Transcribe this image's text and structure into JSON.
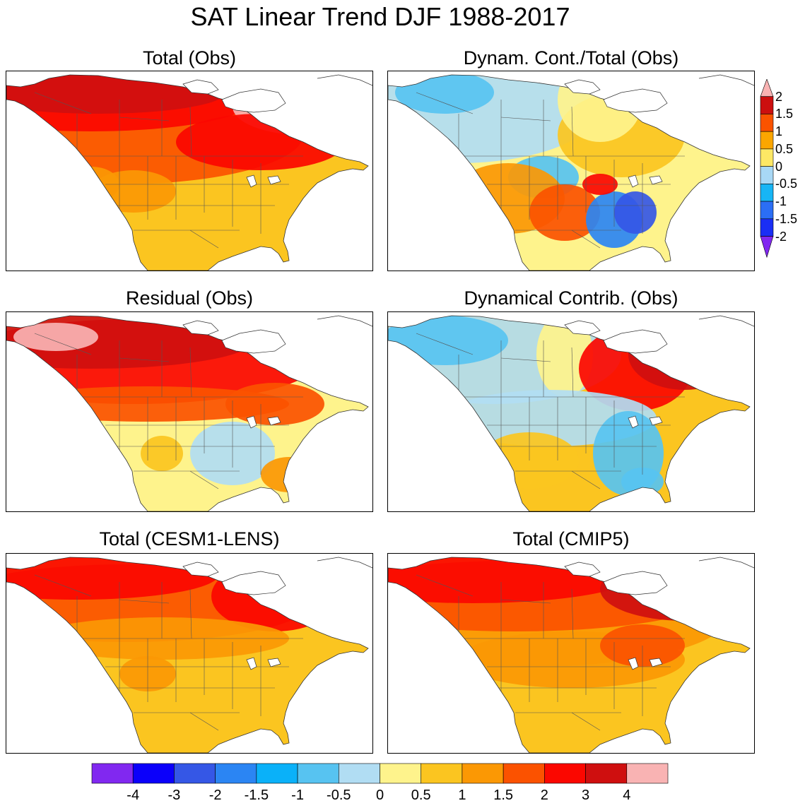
{
  "title": "SAT Linear Trend DJF 1988-2017",
  "panels": [
    {
      "title": "Total (Obs)",
      "scheme": "total_obs"
    },
    {
      "title": "Dynam. Cont./Total (Obs)",
      "scheme": "ratio"
    },
    {
      "title": "Residual (Obs)",
      "scheme": "residual"
    },
    {
      "title": "Dynamical Contrib. (Obs)",
      "scheme": "dynamical"
    },
    {
      "title": "Total (CESM1-LENS)",
      "scheme": "cesm"
    },
    {
      "title": "Total (CMIP5)",
      "scheme": "cmip5"
    }
  ],
  "side_colorbar": {
    "labels": [
      "2",
      "1.5",
      "1",
      "0.5",
      "0",
      "-0.5",
      "-1",
      "-1.5",
      "-2"
    ],
    "colors": [
      "#f9b3b3",
      "#cc0f0f",
      "#fa5300",
      "#fba600",
      "#fde865",
      "#a8d8f5",
      "#17b5f5",
      "#2b6ef5",
      "#1a2ef5",
      "#8128f0"
    ]
  },
  "bottom_colorbar": {
    "labels": [
      "-4",
      "-3",
      "-2",
      "-1.5",
      "-1",
      "-0.5",
      "0",
      "0.5",
      "1",
      "1.5",
      "2",
      "3",
      "4"
    ],
    "colors": [
      "#8128f0",
      "#0b00fa",
      "#3557e6",
      "#2b85f3",
      "#0ab1f9",
      "#57c3f1",
      "#b1ddf3",
      "#fef38c",
      "#fbc520",
      "#fb9804",
      "#fb5200",
      "#fb0700",
      "#cf0f0f",
      "#f9b3b3"
    ]
  }
}
